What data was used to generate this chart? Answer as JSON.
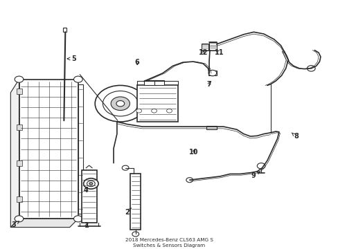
{
  "title": "2018 Mercedes-Benz CLS63 AMG S\nSwitches & Sensors Diagram",
  "background_color": "#ffffff",
  "line_color": "#2a2a2a",
  "text_color": "#2a2a2a",
  "figsize": [
    4.89,
    3.6
  ],
  "dpi": 100,
  "label_positions": {
    "1": [
      0.255,
      0.085,
      0.255,
      0.072
    ],
    "2": [
      0.408,
      0.135,
      0.395,
      0.135
    ],
    "3": [
      0.058,
      0.088,
      0.045,
      0.075
    ],
    "4": [
      0.255,
      0.235,
      0.255,
      0.215
    ],
    "5": [
      0.198,
      0.755,
      0.215,
      0.755
    ],
    "6": [
      0.408,
      0.745,
      0.408,
      0.73
    ],
    "7": [
      0.605,
      0.665,
      0.622,
      0.665
    ],
    "8": [
      0.862,
      0.44,
      0.875,
      0.44
    ],
    "9": [
      0.728,
      0.285,
      0.742,
      0.285
    ],
    "10": [
      0.57,
      0.395,
      0.57,
      0.38
    ],
    "11": [
      0.648,
      0.81,
      0.648,
      0.795
    ],
    "12": [
      0.608,
      0.81,
      0.608,
      0.795
    ]
  }
}
